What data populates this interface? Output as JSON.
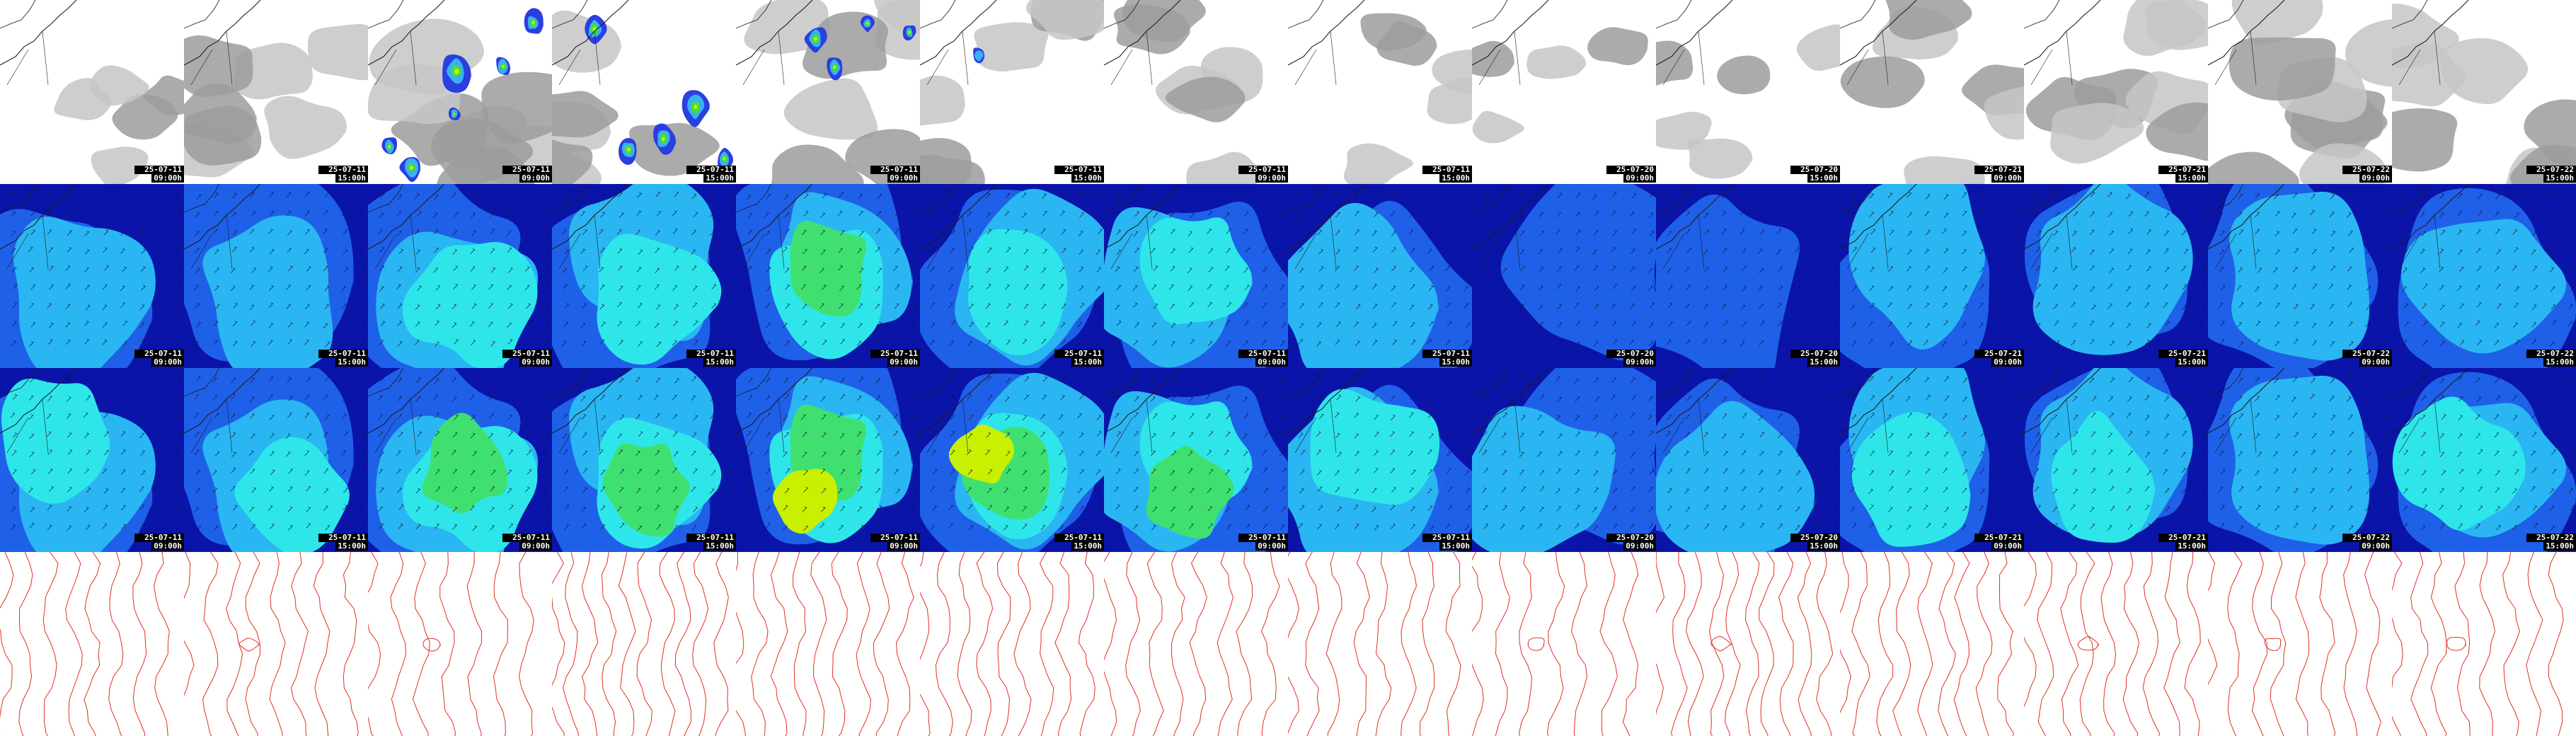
{
  "grid": {
    "rows": 4,
    "columns": 14
  },
  "rows": [
    {
      "key": "cloud",
      "product": "cloud and precipitation"
    },
    {
      "key": "wind-low",
      "product": "wind speed and barbs"
    },
    {
      "key": "wind-high",
      "product": "wind speed and barbs"
    },
    {
      "key": "pressure",
      "product": "isobars"
    }
  ],
  "frames": [
    {
      "date": "25-07-11",
      "time": "09:00h"
    },
    {
      "date": "25-07-11",
      "time": "15:00h"
    },
    {
      "date": "25-07-11",
      "time": "09:00h"
    },
    {
      "date": "25-07-11",
      "time": "15:00h"
    },
    {
      "date": "25-07-11",
      "time": "09:00h"
    },
    {
      "date": "25-07-11",
      "time": "15:00h"
    },
    {
      "date": "25-07-11",
      "time": "09:00h"
    },
    {
      "date": "25-07-11",
      "time": "15:00h"
    },
    {
      "date": "25-07-20",
      "time": "09:00h"
    },
    {
      "date": "25-07-20",
      "time": "15:00h"
    },
    {
      "date": "25-07-21",
      "time": "09:00h"
    },
    {
      "date": "25-07-21",
      "time": "15:00h"
    },
    {
      "date": "25-07-22",
      "time": "09:00h"
    },
    {
      "date": "25-07-22",
      "time": "15:00h"
    }
  ],
  "colors": {
    "cloud_low": "#c6c6c6",
    "cloud_high": "#9c9c9c",
    "precip_light": "#2a3fe0",
    "precip_mid": "#3ab0f0",
    "precip_heavy": "#40e040",
    "precip_peak": "#f0f000",
    "wind_calm": "#0a14a8",
    "wind_light": "#1f60e8",
    "wind_moderate": "#2ab6f2",
    "wind_fresh": "#2ee6ea",
    "wind_strong": "#40e070",
    "wind_gale": "#c8f000",
    "isobar": "#e03020",
    "coastline": "#1a1a1a"
  },
  "cloud_cover": [
    0.25,
    0.6,
    0.75,
    0.55,
    0.65,
    0.5,
    0.45,
    0.35,
    0.2,
    0.3,
    0.55,
    0.6,
    0.75,
    0.7
  ],
  "precipitation": [
    0,
    0,
    0.8,
    0.75,
    0.55,
    0.2,
    0,
    0,
    0,
    0,
    0,
    0.05,
    0,
    0
  ],
  "wind_low": [
    0.35,
    0.4,
    0.55,
    0.6,
    0.7,
    0.55,
    0.5,
    0.35,
    0.25,
    0.25,
    0.45,
    0.4,
    0.4,
    0.45
  ],
  "wind_high": [
    0.5,
    0.55,
    0.8,
    0.8,
    0.9,
    0.9,
    0.7,
    0.5,
    0.3,
    0.35,
    0.6,
    0.55,
    0.45,
    0.5
  ]
}
